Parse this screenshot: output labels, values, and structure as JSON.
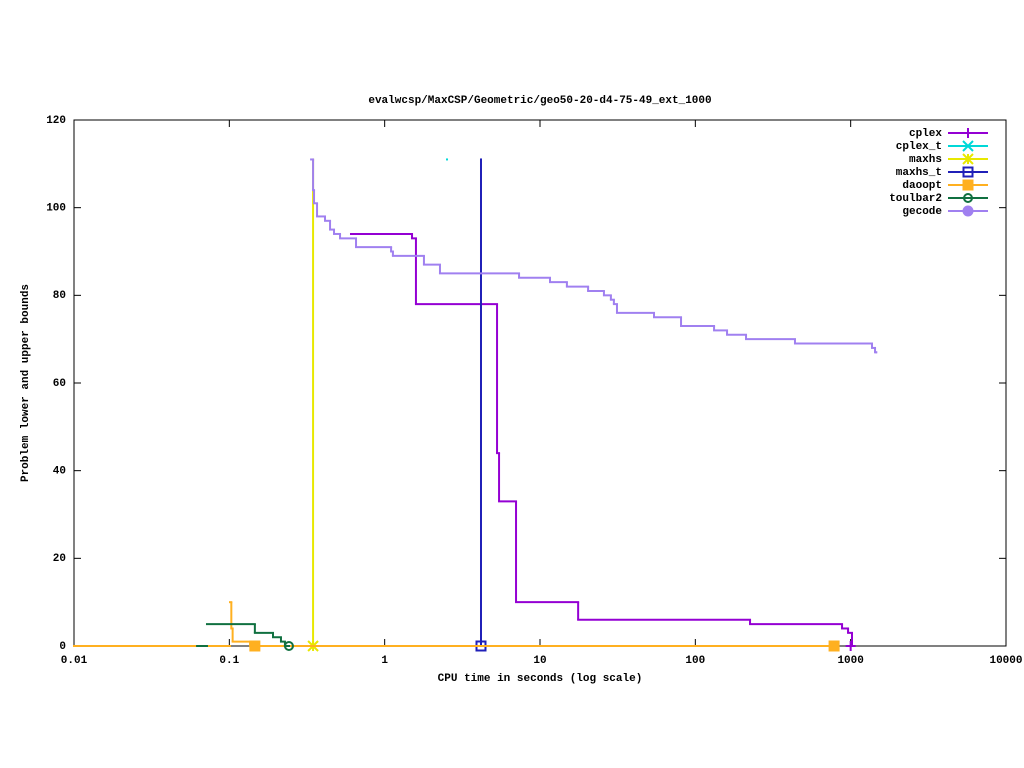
{
  "chart_data": {
    "type": "step",
    "title": "evalwcsp/MaxCSP/Geometric/geo50-20-d4-75-49_ext_1000",
    "x_label": "CPU time in seconds (log scale)",
    "y_label": "Problem lower and upper bounds",
    "x_log": true,
    "grid": false,
    "legend": "top-right",
    "xlim": [
      0.01,
      10000
    ],
    "xticks": [
      0.01,
      0.1,
      1,
      10,
      100,
      1000,
      10000
    ],
    "ylim": [
      0,
      120
    ],
    "yticks": [
      0,
      20,
      40,
      60,
      80,
      100,
      120
    ],
    "series": [
      {
        "name": "cplex",
        "color": "#9400d3",
        "marker": "plus",
        "x": [
          0.607,
          1.5,
          1.59,
          5.29,
          5.45,
          7.01,
          17.6,
          225,
          880,
          962,
          1020
        ],
        "values": [
          94,
          93,
          78,
          44,
          33,
          10,
          6,
          5,
          4,
          3,
          0
        ],
        "markers": {
          "x": [
            1000
          ],
          "y": [
            0
          ]
        }
      },
      {
        "name": "cplex_t",
        "color": "#00d8d8",
        "marker": "cross",
        "x": [
          2.52
        ],
        "values": [
          111
        ],
        "markers": {
          "x": [],
          "y": []
        }
      },
      {
        "name": "maxhs",
        "color": "#e8e800",
        "marker": "star",
        "x": [
          0.346,
          0.346
        ],
        "values": [
          111,
          0
        ],
        "markers": {
          "x": [
            0.346
          ],
          "y": [
            0
          ]
        }
      },
      {
        "name": "maxhs_t",
        "color": "#2020b8",
        "marker": "square",
        "x": [
          4.17,
          4.17
        ],
        "values": [
          111,
          0
        ],
        "markers": {
          "x": [
            4.17
          ],
          "y": [
            0
          ]
        }
      },
      {
        "name": "daoopt",
        "color": "#ffb020",
        "marker": "filled-square",
        "x": [
          0.01,
          0.101,
          0.101,
          0.103,
          0.105,
          0.136,
          782
        ],
        "values": [
          0,
          null,
          10,
          4,
          1,
          0,
          0
        ],
        "markers": {
          "x": [
            0.146,
            782
          ],
          "y": [
            0,
            0
          ]
        }
      },
      {
        "name": "toulbar2",
        "color": "#107040",
        "marker": "circle",
        "x": [
          0.062,
          0.0718,
          0.0718,
          0.146,
          0.191,
          0.215,
          0.228,
          0.242
        ],
        "values": [
          0,
          null,
          5,
          3,
          2,
          1,
          0,
          0
        ],
        "markers": {
          "x": [
            0.242
          ],
          "y": [
            0
          ]
        }
      },
      {
        "name": "gecode",
        "color": "#a080f0",
        "marker": "filled-circle",
        "x": [
          0.336,
          0.346,
          0.351,
          0.367,
          0.413,
          0.445,
          0.472,
          0.516,
          0.654,
          1.1,
          1.13,
          1.79,
          2.27,
          7.33,
          11.6,
          14.9,
          20.4,
          25.8,
          28.6,
          29.9,
          31.3,
          54.2,
          80.9,
          132,
          160,
          212,
          438,
          1372,
          1435,
          1460
        ],
        "values": [
          111,
          104,
          101,
          98,
          97,
          95,
          94,
          93,
          91,
          90,
          89,
          87,
          85,
          84,
          83,
          82,
          81,
          80,
          79,
          78,
          76,
          75,
          73,
          72,
          71,
          70,
          69,
          68,
          67,
          67
        ],
        "markers": {
          "x": [],
          "y": []
        }
      }
    ]
  }
}
